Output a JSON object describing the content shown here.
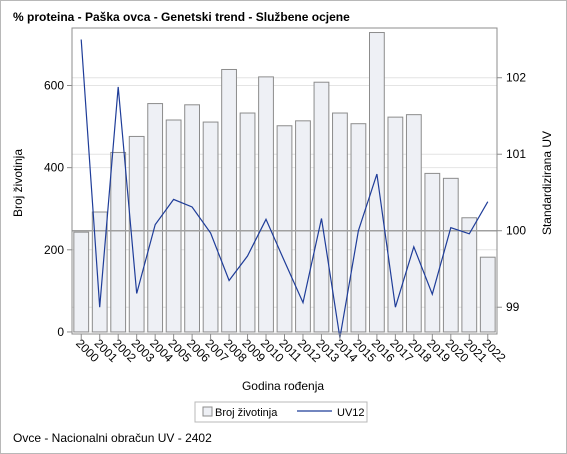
{
  "title": "% proteina - Paška ovca - Genetski trend - Službene ocjene",
  "footnote": "Ovce - Nacionalni obračun UV - 2402",
  "chart_data": {
    "type": "bar+line",
    "categories": [
      "2000",
      "2001",
      "2002",
      "2003",
      "2004",
      "2005",
      "2006",
      "2007",
      "2008",
      "2009",
      "2010",
      "2011",
      "2012",
      "2013",
      "2014",
      "2015",
      "2016",
      "2017",
      "2018",
      "2019",
      "2020",
      "2021",
      "2022"
    ],
    "series": [
      {
        "name": "Broj životinja",
        "type": "bar",
        "axis": "left",
        "values": [
          243,
          292,
          437,
          476,
          556,
          516,
          553,
          511,
          639,
          533,
          621,
          502,
          514,
          608,
          533,
          507,
          729,
          523,
          529,
          386,
          374,
          278,
          182
        ]
      },
      {
        "name": "UV12",
        "type": "line",
        "axis": "right",
        "values": [
          102.5,
          99.0,
          101.88,
          99.18,
          100.08,
          100.41,
          100.31,
          99.97,
          99.35,
          99.67,
          100.15,
          99.6,
          99.06,
          100.16,
          98.6,
          100.0,
          100.74,
          99.0,
          99.79,
          99.17,
          100.04,
          99.96,
          100.38
        ]
      }
    ],
    "xlabel": "Godina rođenja",
    "ylabel_left": "Broj životinja",
    "ylabel_right": "Standardizirana UV",
    "yticks_left": [
      0,
      200,
      400,
      600
    ],
    "yticks_right": [
      99,
      100,
      101,
      102
    ],
    "ylim_left": [
      -5,
      740
    ],
    "ylim_right": [
      98.65,
      102.65
    ],
    "reference_line_right": 100,
    "colors": {
      "bar_fill": "#eef0f5",
      "bar_stroke": "#8c8c8c",
      "line": "#1f3d99",
      "reference": "#a0a0a0",
      "grid": "#e4e4e4",
      "axis": "#8c8c8c"
    },
    "legend_position": "bottom"
  }
}
